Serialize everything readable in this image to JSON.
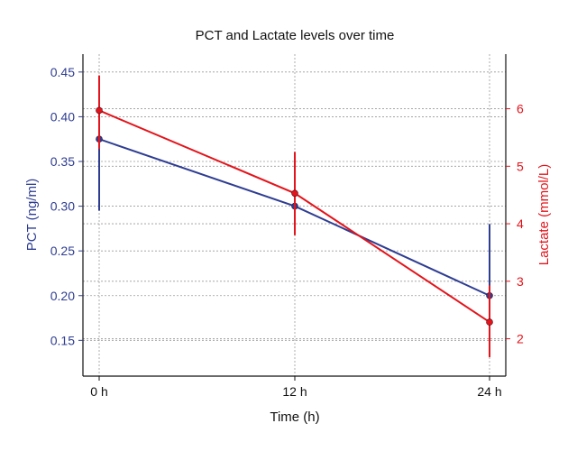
{
  "chart_data": {
    "type": "line",
    "title": "PCT and Lactate levels over time",
    "xlabel": "Time (h)",
    "categories": [
      "0 h",
      "12 h",
      "24 h"
    ],
    "grid": true,
    "axes": {
      "left": {
        "label": "PCT (ng/ml)",
        "ylim": [
          0.11,
          0.47
        ],
        "ticks": [
          0.15,
          0.2,
          0.25,
          0.3,
          0.35,
          0.4,
          0.45
        ],
        "tick_labels": [
          "0.15",
          "0.20",
          "0.25",
          "0.30",
          "0.35",
          "0.40",
          "0.45"
        ],
        "color": "#2e3d92"
      },
      "right": {
        "label": "Lactate (mmol/L)",
        "ylim": [
          1.35,
          6.95
        ],
        "ticks": [
          2,
          3,
          4,
          5,
          6
        ],
        "tick_labels": [
          "2",
          "3",
          "4",
          "5",
          "6"
        ],
        "color": "#e3141b"
      }
    },
    "series": [
      {
        "name": "PCT",
        "axis": "left",
        "color": "#2e3d92",
        "values": [
          0.375,
          0.3,
          0.2
        ],
        "err_low": [
          0.295,
          0.3,
          0.2
        ],
        "err_high": [
          0.375,
          0.3,
          0.28
        ]
      },
      {
        "name": "Lactate",
        "axis": "right",
        "color": "#e3141b",
        "values": [
          5.97,
          4.53,
          2.29
        ],
        "err_low": [
          5.3,
          3.8,
          1.68
        ],
        "err_high": [
          6.58,
          5.25,
          2.93
        ]
      }
    ]
  }
}
